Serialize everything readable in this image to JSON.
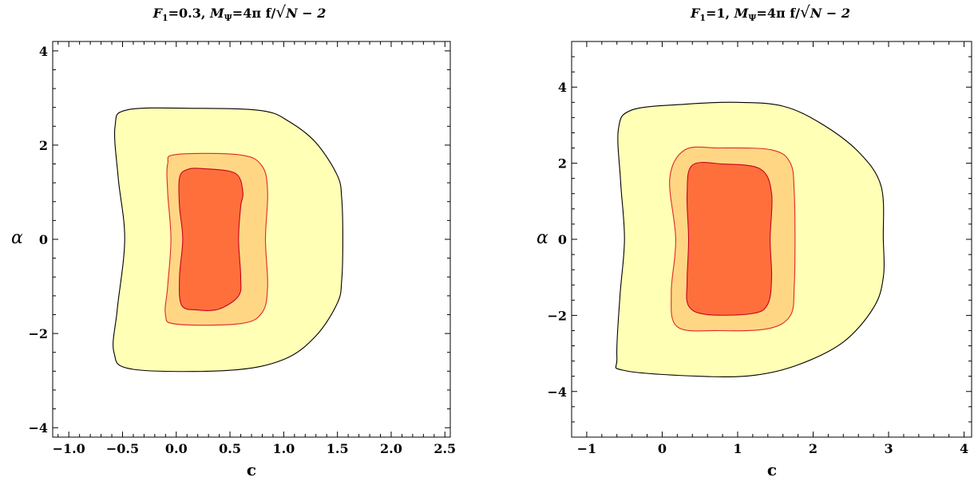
{
  "chart_data": [
    {
      "type": "contour",
      "title": {
        "f_main": "F",
        "f_sub": "1",
        "f_val": "=0.3, ",
        "m_main": "M",
        "m_sub": "Ψ",
        "m_rest": "=4π f/",
        "sqrt_arg": "N − 2"
      },
      "xlabel": "c",
      "ylabel": "α",
      "xlim": [
        -1.15,
        2.55
      ],
      "ylim": [
        -4.2,
        4.2
      ],
      "xticks": [
        -1.0,
        -0.5,
        0.0,
        0.5,
        1.0,
        1.5,
        2.0,
        2.5
      ],
      "xtick_labels": [
        "−1.0",
        "−0.5",
        "0.0",
        "0.5",
        "1.0",
        "1.5",
        "2.0",
        "2.5"
      ],
      "yticks": [
        -4,
        -2,
        0,
        2,
        4
      ],
      "ytick_labels": [
        "−4",
        "−2",
        "0",
        "2",
        "4"
      ],
      "regions": [
        {
          "fill": "#ffffb6",
          "stroke": "#000000",
          "points": [
            [
              1.54,
              0.85
            ],
            [
              1.5,
              1.35
            ],
            [
              1.3,
              2.05
            ],
            [
              1.05,
              2.5
            ],
            [
              0.8,
              2.73
            ],
            [
              0.2,
              2.78
            ],
            [
              -0.45,
              2.75
            ],
            [
              -0.57,
              2.4
            ],
            [
              -0.54,
              1.3
            ],
            [
              -0.48,
              0
            ],
            [
              -0.55,
              -1.5
            ],
            [
              -0.58,
              -2.4
            ],
            [
              -0.4,
              -2.76
            ],
            [
              0.5,
              -2.78
            ],
            [
              1.0,
              -2.55
            ],
            [
              1.3,
              -2.05
            ],
            [
              1.5,
              -1.35
            ],
            [
              1.54,
              -0.85
            ],
            [
              1.55,
              0
            ]
          ]
        },
        {
          "fill": "#ffd784",
          "stroke": "#e32626",
          "points": [
            [
              0.85,
              1.0
            ],
            [
              0.8,
              1.55
            ],
            [
              0.6,
              1.79
            ],
            [
              0.0,
              1.8
            ],
            [
              -0.08,
              1.6
            ],
            [
              -0.08,
              1.0
            ],
            [
              -0.05,
              0
            ],
            [
              -0.08,
              -1.0
            ],
            [
              -0.1,
              -1.6
            ],
            [
              0.0,
              -1.8
            ],
            [
              0.6,
              -1.79
            ],
            [
              0.8,
              -1.55
            ],
            [
              0.85,
              -1.0
            ],
            [
              0.83,
              0
            ]
          ]
        },
        {
          "fill": "#ff6f3c",
          "stroke": "#c8001e",
          "points": [
            [
              0.62,
              1.0
            ],
            [
              0.55,
              1.4
            ],
            [
              0.25,
              1.5
            ],
            [
              0.1,
              1.48
            ],
            [
              0.03,
              1.3
            ],
            [
              0.03,
              0.7
            ],
            [
              0.06,
              0
            ],
            [
              0.03,
              -0.8
            ],
            [
              0.05,
              -1.4
            ],
            [
              0.2,
              -1.5
            ],
            [
              0.4,
              -1.48
            ],
            [
              0.58,
              -1.2
            ],
            [
              0.6,
              -0.8
            ],
            [
              0.58,
              0
            ],
            [
              0.6,
              0.7
            ]
          ]
        }
      ]
    },
    {
      "type": "contour",
      "title": {
        "f_main": "F",
        "f_sub": "1",
        "f_val": "=1, ",
        "m_main": "M",
        "m_sub": "Ψ",
        "m_rest": "=4π f/",
        "sqrt_arg": "N − 2"
      },
      "xlabel": "c",
      "ylabel": "α",
      "xlim": [
        -1.2,
        4.1
      ],
      "ylim": [
        -5.2,
        5.2
      ],
      "xticks": [
        -1,
        0,
        1,
        2,
        3,
        4
      ],
      "xtick_labels": [
        "−1",
        "0",
        "1",
        "2",
        "3",
        "4"
      ],
      "yticks": [
        -4,
        -2,
        0,
        2,
        4
      ],
      "ytick_labels": [
        "−4",
        "−2",
        "0",
        "2",
        "4"
      ],
      "regions": [
        {
          "fill": "#ffffb6",
          "stroke": "#000000",
          "points": [
            [
              2.9,
              1.4
            ],
            [
              2.6,
              2.3
            ],
            [
              2.1,
              3.05
            ],
            [
              1.6,
              3.5
            ],
            [
              1.0,
              3.6
            ],
            [
              0.3,
              3.55
            ],
            [
              -0.4,
              3.4
            ],
            [
              -0.58,
              2.9
            ],
            [
              -0.55,
              1.5
            ],
            [
              -0.5,
              0
            ],
            [
              -0.56,
              -1.5
            ],
            [
              -0.6,
              -3.1
            ],
            [
              -0.5,
              -3.45
            ],
            [
              0.5,
              -3.6
            ],
            [
              1.2,
              -3.58
            ],
            [
              1.8,
              -3.3
            ],
            [
              2.4,
              -2.7
            ],
            [
              2.8,
              -1.8
            ],
            [
              2.93,
              -1.0
            ],
            [
              2.93,
              0
            ]
          ]
        },
        {
          "fill": "#ffd784",
          "stroke": "#e32626",
          "points": [
            [
              1.75,
              1.2
            ],
            [
              1.7,
              2.0
            ],
            [
              1.45,
              2.35
            ],
            [
              0.75,
              2.4
            ],
            [
              0.3,
              2.35
            ],
            [
              0.1,
              1.6
            ],
            [
              0.18,
              0
            ],
            [
              0.12,
              -1.4
            ],
            [
              0.2,
              -2.3
            ],
            [
              0.75,
              -2.4
            ],
            [
              1.4,
              -2.35
            ],
            [
              1.7,
              -2.0
            ],
            [
              1.75,
              -1.2
            ],
            [
              1.76,
              0
            ]
          ]
        },
        {
          "fill": "#ff6f3c",
          "stroke": "#c8001e",
          "points": [
            [
              1.45,
              1.2
            ],
            [
              1.3,
              1.85
            ],
            [
              0.8,
              1.98
            ],
            [
              0.4,
              1.95
            ],
            [
              0.33,
              1.2
            ],
            [
              0.35,
              0
            ],
            [
              0.33,
              -1.1
            ],
            [
              0.35,
              -1.75
            ],
            [
              0.6,
              -1.98
            ],
            [
              1.2,
              -1.95
            ],
            [
              1.4,
              -1.7
            ],
            [
              1.45,
              -1.0
            ],
            [
              1.43,
              0
            ]
          ]
        }
      ]
    }
  ]
}
